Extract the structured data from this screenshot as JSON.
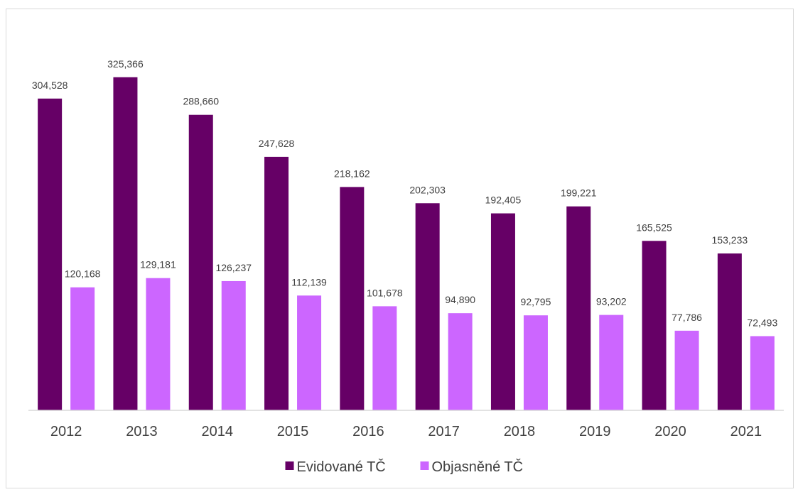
{
  "chart_data": {
    "type": "bar",
    "title": "",
    "xlabel": "",
    "ylabel": "",
    "categories": [
      "2012",
      "2013",
      "2014",
      "2015",
      "2016",
      "2017",
      "2018",
      "2019",
      "2020",
      "2021"
    ],
    "series": [
      {
        "name": "Evidované TČ",
        "color": "#660066",
        "values": [
          304528,
          325366,
          288660,
          247628,
          218162,
          202303,
          192405,
          199221,
          165525,
          153233
        ],
        "labels": [
          "304,528",
          "325,366",
          "288,660",
          "247,628",
          "218,162",
          "202,303",
          "192,405",
          "199,221",
          "165,525",
          "153,233"
        ]
      },
      {
        "name": "Objasněné TČ",
        "color": "#cc66ff",
        "values": [
          120168,
          129181,
          126237,
          112139,
          101678,
          94890,
          92795,
          93202,
          77786,
          72493
        ],
        "labels": [
          "120,168",
          "129,181",
          "126,237",
          "112,139",
          "101,678",
          "94,890",
          "92,795",
          "93,202",
          "77,786",
          "72,493"
        ]
      }
    ],
    "ylim": [
      0,
      380000
    ],
    "grid": false,
    "legend_position": "bottom",
    "axis_color": "#d9d9d9"
  }
}
